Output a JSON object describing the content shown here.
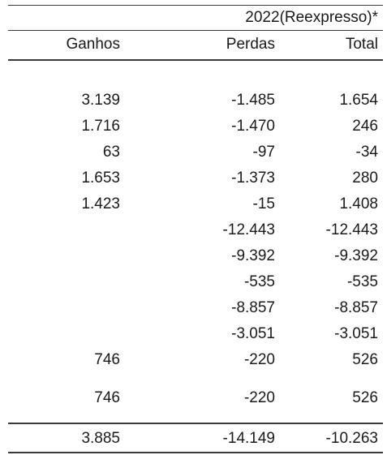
{
  "table": {
    "period_label": "2022(Reexpresso)*",
    "headers": {
      "ganhos": "Ganhos",
      "perdas": "Perdas",
      "total": "Total"
    },
    "rows": [
      {
        "ganhos": "3.139",
        "perdas": "-1.485",
        "total": "1.654"
      },
      {
        "ganhos": "1.716",
        "perdas": "-1.470",
        "total": "246"
      },
      {
        "ganhos": "63",
        "perdas": "-97",
        "total": "-34"
      },
      {
        "ganhos": "1.653",
        "perdas": "-1.373",
        "total": "280"
      },
      {
        "ganhos": "1.423",
        "perdas": "-15",
        "total": "1.408"
      },
      {
        "ganhos": "",
        "perdas": "-12.443",
        "total": "-12.443"
      },
      {
        "ganhos": "",
        "perdas": "-9.392",
        "total": "-9.392"
      },
      {
        "ganhos": "",
        "perdas": "-535",
        "total": "-535"
      },
      {
        "ganhos": "",
        "perdas": "-8.857",
        "total": "-8.857"
      },
      {
        "ganhos": "",
        "perdas": "-3.051",
        "total": "-3.051"
      },
      {
        "ganhos": "746",
        "perdas": "-220",
        "total": "526"
      },
      {
        "ganhos": "746",
        "perdas": "-220",
        "total": "526"
      }
    ],
    "totals": {
      "ganhos": "3.885",
      "perdas": "-14.149",
      "total": "-10.263"
    }
  }
}
